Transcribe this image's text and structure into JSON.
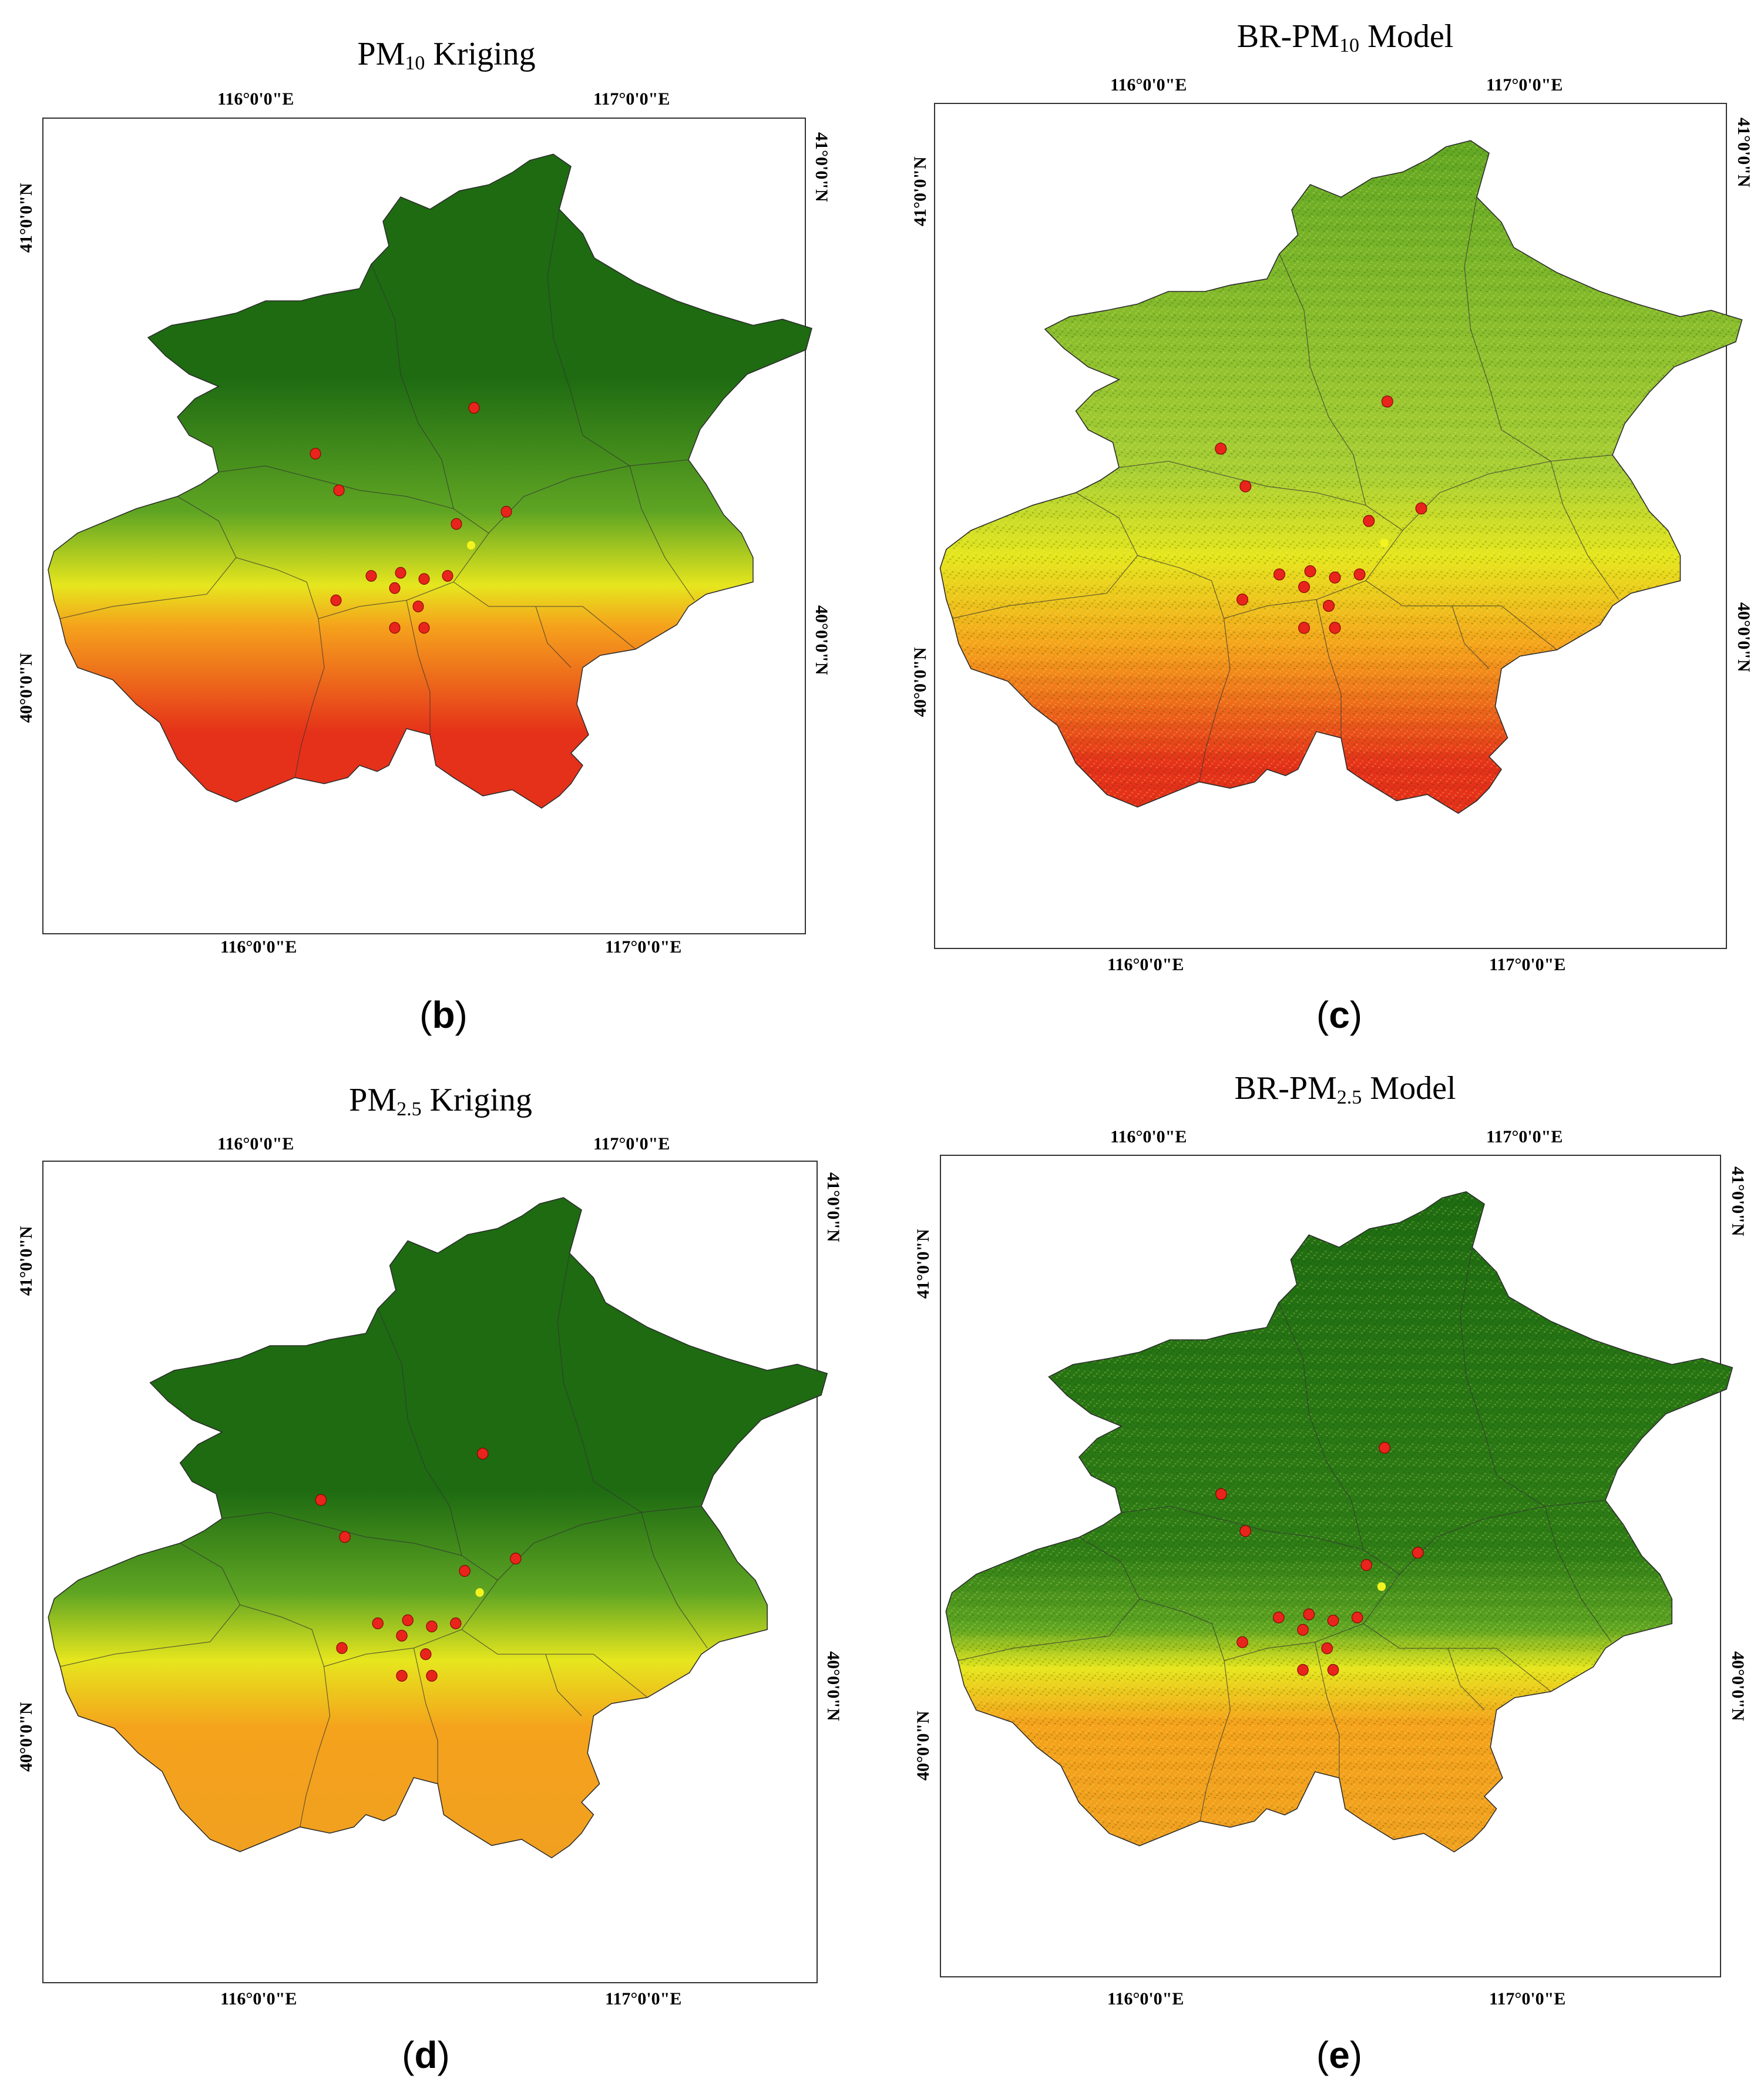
{
  "panels": [
    {
      "id": "b",
      "title_main": "PM",
      "title_sub": "10",
      "title_rest": " Kriging",
      "caption_letter": "b",
      "style": "kriging",
      "pollutant": "pm10"
    },
    {
      "id": "c",
      "title_main": "BR-PM",
      "title_sub": "10",
      "title_rest": " Model",
      "caption_letter": "c",
      "style": "model",
      "pollutant": "pm10"
    },
    {
      "id": "d",
      "title_main": "PM",
      "title_sub": "2.5",
      "title_rest": " Kriging",
      "caption_letter": "d",
      "style": "kriging",
      "pollutant": "pm25"
    },
    {
      "id": "e",
      "title_main": "BR-PM",
      "title_sub": "2.5",
      "title_rest": " Model",
      "caption_letter": "e",
      "style": "model",
      "pollutant": "pm25"
    }
  ],
  "ticks": {
    "lon_1": "116°0'0\"E",
    "lon_2": "117°0'0\"E",
    "lat_1": "41°0'0\"N",
    "lat_2": "40°0'0\"N"
  },
  "colors": {
    "low": "#1e6b12",
    "mid_low": "#5fa523",
    "mid": "#e6e61e",
    "mid_high": "#f5a21c",
    "high": "#e5311a",
    "station": "#e8241c",
    "station_highlight": "#f3f320"
  }
}
